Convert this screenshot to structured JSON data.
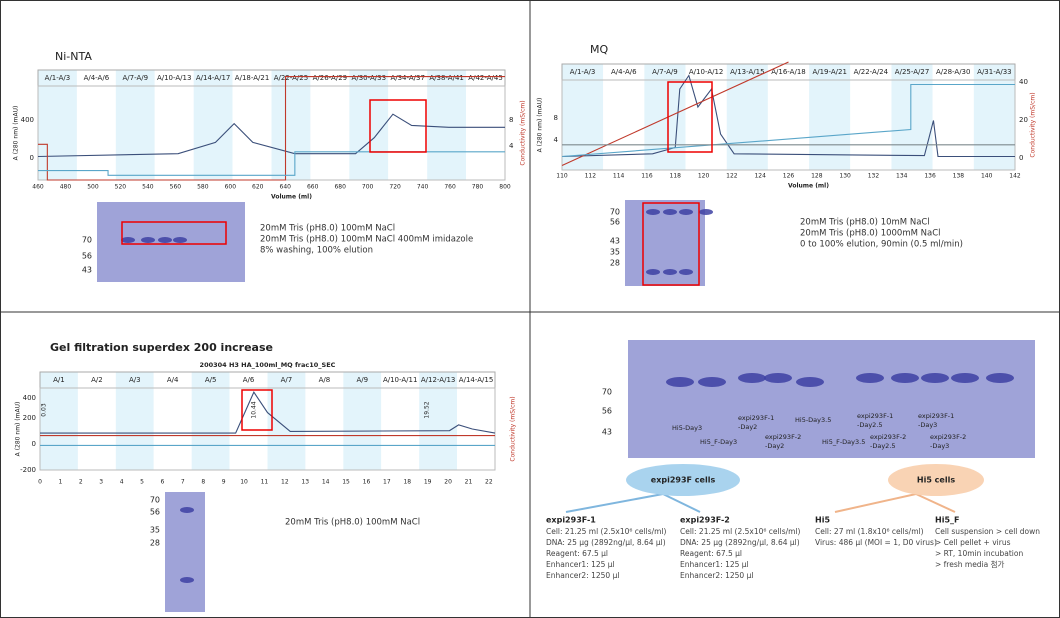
{
  "panels": [
    {
      "title": "Ni-NTA",
      "chromatogram": {
        "fractions": [
          "A/1-A/3",
          "A/4-A/6",
          "A/7-A/9",
          "A/10-A/13",
          "A/14-A/17",
          "A/18-A/21",
          "A/22-A/25",
          "A/26-A/29",
          "A/30-A/33",
          "A/34-A/37",
          "A/38-A/41",
          "A/42-A/45"
        ],
        "y_label": "A (280 nm) (mAU)",
        "y_ticks": [
          "400",
          "0"
        ],
        "y2_label": "Conductivity (mS/cm)",
        "y2_ticks": [
          "8",
          "4"
        ],
        "x_label": "Volume (ml)",
        "x_ticks": [
          "460",
          "480",
          "500",
          "520",
          "540",
          "560",
          "580",
          "600",
          "620",
          "640",
          "660",
          "680",
          "700",
          "720",
          "740",
          "760",
          "780",
          "800"
        ]
      },
      "gel_markers": [
        "70",
        "56",
        "43"
      ],
      "notes": [
        "20mM Tris (pH8.0) 100mM NaCl",
        "20mM Tris (pH8.0) 100mM NaCl 400mM imidazole",
        "8% washing, 100% elution"
      ]
    },
    {
      "title": "MQ",
      "chromatogram": {
        "fractions": [
          "A/1-A/3",
          "A/4-A/6",
          "A/7-A/9",
          "A/10-A/12",
          "A/13-A/15",
          "A/16-A/18",
          "A/19-A/21",
          "A/22-A/24",
          "A/25-A/27",
          "A/28-A/30",
          "A/31-A/33"
        ],
        "y_label": "A (280 nm) (mAU)",
        "y_ticks": [
          "8",
          "4"
        ],
        "y2_label": "Conductivity (mS/cm)",
        "y2_ticks": [
          "40",
          "20",
          "0"
        ],
        "x_label": "Volume (ml)",
        "x_ticks": [
          "110",
          "112",
          "114",
          "116",
          "118",
          "120",
          "122",
          "124",
          "126",
          "128",
          "130",
          "132",
          "134",
          "136",
          "138",
          "140",
          "142"
        ]
      },
      "gel_markers": [
        "70",
        "56",
        "43",
        "35",
        "28"
      ],
      "notes": [
        "20mM Tris (pH8.0) 10mM NaCl",
        "20mM Tris (pH8.0) 1000mM NaCl",
        "0 to 100% elution, 90min (0.5 ml/min)"
      ]
    },
    {
      "title": "Gel filtration superdex 200 increase",
      "chromatogram": {
        "chart_title": "200304 H3 HA_100ml_MQ frac10_SEC",
        "fractions": [
          "A/1",
          "A/2",
          "A/3",
          "A/4",
          "A/5",
          "A/6",
          "A/7",
          "A/8",
          "A/9",
          "A/10-A/11",
          "A/12-A/13",
          "A/14-A/15"
        ],
        "y_label": "A (280 nm) (mAU)",
        "y_ticks": [
          "400",
          "200",
          "0",
          "-200"
        ],
        "y2_label": "Conductivity (mS/cm)",
        "x_ticks": [
          "0",
          "1",
          "2",
          "3",
          "4",
          "5",
          "6",
          "7",
          "8",
          "9",
          "10",
          "11",
          "12",
          "13",
          "14",
          "15",
          "16",
          "17",
          "18",
          "19",
          "20",
          "21",
          "22"
        ],
        "peak_labels": [
          "0.03",
          "10.44",
          "19.52"
        ]
      },
      "gel_markers": [
        "70",
        "56",
        "35",
        "28"
      ],
      "notes": [
        "20mM Tris (pH8.0) 100mM NaCl"
      ]
    },
    {
      "gel_markers": [
        "70",
        "56",
        "43"
      ],
      "lane_labels": [
        [
          "Hi5-Day3"
        ],
        [
          "Hi5_F-Day3"
        ],
        [
          "expi293F-1",
          "-Day2"
        ],
        [
          "expi293F-2",
          "-Day2"
        ],
        [
          "Hi5-Day3.5"
        ],
        [
          "Hi5_F-Day3.5"
        ],
        [
          "expi293F-1",
          "-Day2.5"
        ],
        [
          "expi293F-2",
          "-Day2.5"
        ],
        [
          "expi293F-1",
          "-Day3"
        ],
        [
          "expi293F-2",
          "-Day3"
        ]
      ],
      "groups": [
        {
          "name": "expi293F cells",
          "items": [
            {
              "title": "expi293F-1",
              "lines": [
                "Cell: 21.25 ml (2.5x10⁶ cells/ml)",
                "DNA: 25 μg (2892ng/μl, 8.64 μl)",
                "Reagent: 67.5 μl",
                "Enhancer1: 125 μl",
                "Enhancer2: 1250 μl"
              ]
            },
            {
              "title": "expi293F-2",
              "lines": [
                "Cell: 21.25 ml (2.5x10⁶ cells/ml)",
                "DNA: 25 μg (2892ng/μl, 8.64 μl)",
                "Reagent: 67.5 μl",
                "Enhancer1: 125 μl",
                "Enhancer2: 1250 μl"
              ]
            }
          ]
        },
        {
          "name": "Hi5 cells",
          "items": [
            {
              "title": "Hi5",
              "lines": [
                "Cell: 27 ml (1.8x10⁶ cells/ml)",
                "Virus: 486 μl (MOI = 1, D0 virus)"
              ]
            },
            {
              "title": "Hi5_F",
              "lines": [
                "Cell suspension > cell down",
                "> Cell pellet + virus",
                "> RT, 10min incubation",
                "> fresh media 첨가"
              ]
            }
          ]
        }
      ]
    }
  ]
}
